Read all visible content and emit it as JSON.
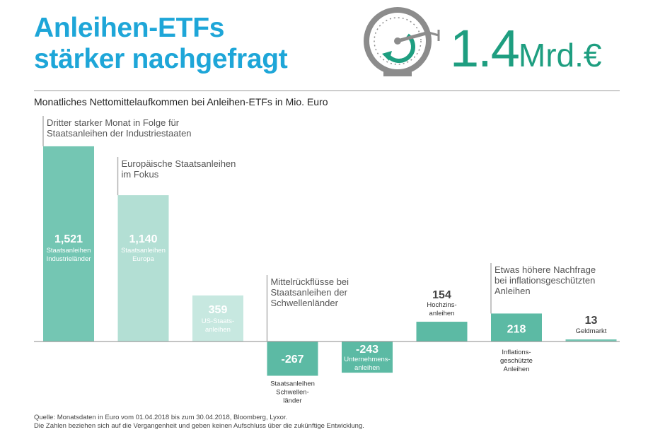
{
  "header": {
    "title_line1": "Anleihen-ETFs",
    "title_line2": "stärker nachgefragt",
    "big_number": "1.4",
    "big_unit": "Mrd.€",
    "subtitle": "Monatliches Nettomittelaufkommen bei Anleihen-ETFs in Mio. Euro"
  },
  "colors": {
    "title": "#1ea6d8",
    "accent": "#1e9e80",
    "bar_primary": "#74c6b3",
    "bar_light": "#b3dfd4",
    "bar_lightest": "#c7e8e0",
    "bar_dark": "#5cbaa4",
    "gauge_gray": "#8c8c8c"
  },
  "chart_data": {
    "type": "bar",
    "title": "Monatliches Nettomittelaufkommen bei Anleihen-ETFs in Mio. Euro",
    "xlabel": "",
    "ylabel": "Mio. Euro",
    "ylim": [
      -330,
      1580
    ],
    "grid": false,
    "categories": [
      "Staatsanleihen Industrieländer",
      "Staatsanleihen Europa",
      "US-Staatsanleihen",
      "Staatsanleihen Schwellenländer",
      "Unternehmensanleihen",
      "Hochzinsanleihen",
      "Inflationsgeschützte Anleihen",
      "Geldmarkt"
    ],
    "values": [
      1521,
      1140,
      359,
      -267,
      -243,
      154,
      218,
      13
    ],
    "value_labels": [
      "1,521",
      "1,140",
      "359",
      "-267",
      "-243",
      "154",
      "218",
      "13"
    ],
    "bar_labels": [
      [
        "Staatsanleihen",
        "Industrieländer"
      ],
      [
        "Staatsanleihen",
        "Europa"
      ],
      [
        "US-Staats-",
        "anleihen"
      ],
      [
        "Staatsanleihen",
        "Schwellen-",
        "länder"
      ],
      [
        "Unternehmens-",
        "anleihen"
      ],
      [
        "Hochzins-",
        "anleihen"
      ],
      [
        "Inflations-",
        "geschützte",
        "Anleihen"
      ],
      [
        "Geldmarkt"
      ]
    ],
    "annotations": [
      {
        "bar": 0,
        "lines": [
          "Dritter starker Monat in Folge für",
          "Staatsanleihen der Industriestaaten"
        ]
      },
      {
        "bar": 1,
        "lines": [
          "Europäische Staatsanleihen",
          "im Fokus"
        ]
      },
      {
        "bar": 3,
        "lines": [
          "Mittelrückflüsse bei",
          "Staatsanleihen der",
          "Schwellenländer"
        ]
      },
      {
        "bar": 6,
        "lines": [
          "Etwas höhere Nachfrage",
          "bei inflationsgeschützten",
          "Anleihen"
        ]
      }
    ]
  },
  "footer": {
    "line1": "Quelle: Monatsdaten in Euro vom 01.04.2018 bis zum 30.04.2018, Bloomberg, Lyxor.",
    "line2": "Die Zahlen beziehen sich auf die Vergangenheit und geben keinen Aufschluss über die zukünftige Entwicklung."
  }
}
